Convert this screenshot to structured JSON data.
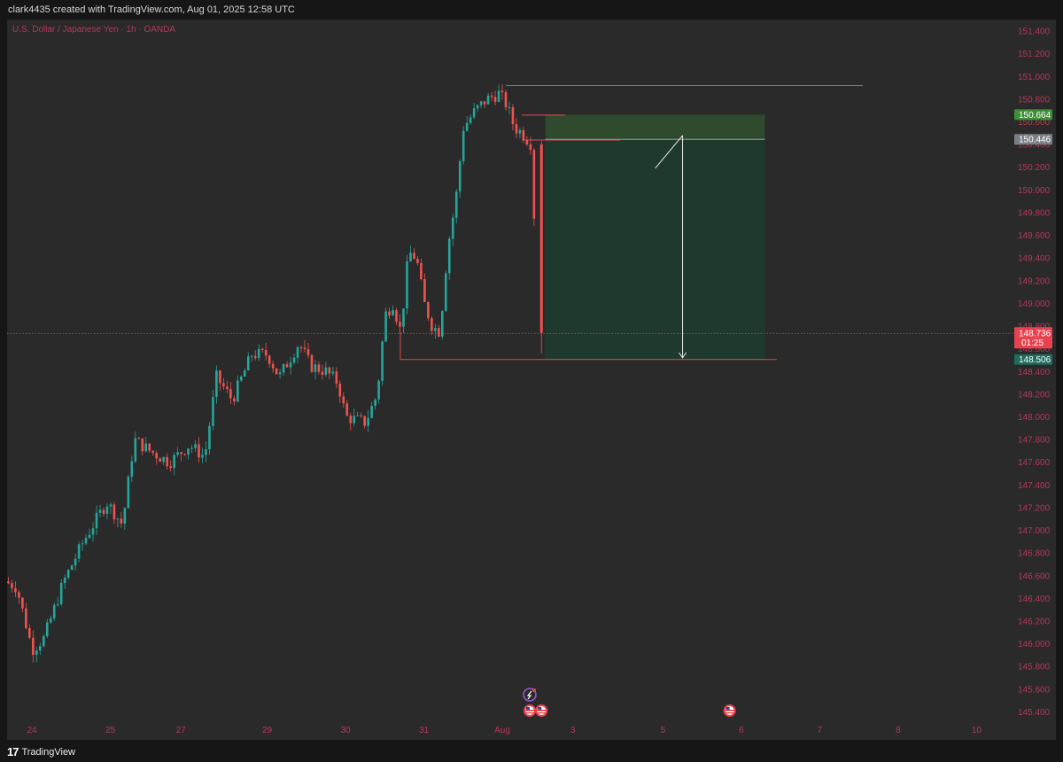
{
  "header": {
    "attribution": "clark4435 created with TradingView.com, Aug 01, 2025 12:58 UTC"
  },
  "footer": {
    "logo_mark": "17",
    "logo_text": "TradingView"
  },
  "colors": {
    "background": "#2a2a2a",
    "frame": "#161616",
    "up": "#26a69a",
    "down": "#ef5350",
    "axis_text": "#b5385a",
    "tp_zone": "#1e3a2e",
    "sl_zone": "#2f4a2c",
    "level_line": "#e04850"
  },
  "chart_data": {
    "type": "candlestick",
    "title": "U.S. Dollar / Japanese Yen · 1h · OANDA",
    "symbol": "U.S. Dollar / Japanese Yen",
    "interval": "1h",
    "exchange": "OANDA",
    "ylim": [
      145.36,
      151.42
    ],
    "y_ticks": [
      "151.400",
      "151.200",
      "151.000",
      "150.800",
      "150.600",
      "150.400",
      "150.200",
      "150.000",
      "149.800",
      "149.600",
      "149.400",
      "149.200",
      "149.000",
      "148.800",
      "148.600",
      "148.400",
      "148.200",
      "148.000",
      "147.800",
      "147.600",
      "147.400",
      "147.200",
      "147.000",
      "146.800",
      "146.600",
      "146.400",
      "146.200",
      "146.000",
      "145.800",
      "145.600",
      "145.400"
    ],
    "x_ticks": [
      {
        "label": "24",
        "day": 0
      },
      {
        "label": "25",
        "day": 1
      },
      {
        "label": "27",
        "day": 1.9
      },
      {
        "label": "29",
        "day": 3
      },
      {
        "label": "30",
        "day": 4
      },
      {
        "label": "31",
        "day": 5
      },
      {
        "label": "Aug",
        "day": 6
      },
      {
        "label": "3",
        "day": 6.9
      },
      {
        "label": "5",
        "day": 8.05
      },
      {
        "label": "6",
        "day": 9.05
      },
      {
        "label": "7",
        "day": 10.05
      },
      {
        "label": "8",
        "day": 11.05
      },
      {
        "label": "10",
        "day": 12.05
      }
    ],
    "price_path": [
      {
        "day": -0.3,
        "price": 146.55
      },
      {
        "day": -0.15,
        "price": 146.5
      },
      {
        "day": 0.05,
        "price": 145.95
      },
      {
        "day": 0.2,
        "price": 146.05
      },
      {
        "day": 0.45,
        "price": 146.55
      },
      {
        "day": 0.7,
        "price": 146.9
      },
      {
        "day": 1.0,
        "price": 147.25
      },
      {
        "day": 1.2,
        "price": 147.05
      },
      {
        "day": 1.35,
        "price": 147.8
      },
      {
        "day": 1.55,
        "price": 147.7
      },
      {
        "day": 1.8,
        "price": 147.6
      },
      {
        "day": 2.05,
        "price": 147.75
      },
      {
        "day": 2.25,
        "price": 147.65
      },
      {
        "day": 2.4,
        "price": 148.35
      },
      {
        "day": 2.6,
        "price": 148.15
      },
      {
        "day": 2.85,
        "price": 148.55
      },
      {
        "day": 3.05,
        "price": 148.55
      },
      {
        "day": 3.2,
        "price": 148.35
      },
      {
        "day": 3.45,
        "price": 148.65
      },
      {
        "day": 3.6,
        "price": 148.45
      },
      {
        "day": 3.8,
        "price": 148.4
      },
      {
        "day": 3.95,
        "price": 148.3
      },
      {
        "day": 4.05,
        "price": 148.0
      },
      {
        "day": 4.3,
        "price": 147.95
      },
      {
        "day": 4.45,
        "price": 148.2
      },
      {
        "day": 4.55,
        "price": 148.9
      },
      {
        "day": 4.65,
        "price": 149.0
      },
      {
        "day": 4.75,
        "price": 148.75
      },
      {
        "day": 4.85,
        "price": 149.45
      },
      {
        "day": 4.95,
        "price": 149.4
      },
      {
        "day": 5.05,
        "price": 149.0
      },
      {
        "day": 5.15,
        "price": 148.8
      },
      {
        "day": 5.25,
        "price": 148.75
      },
      {
        "day": 5.35,
        "price": 149.5
      },
      {
        "day": 5.45,
        "price": 149.9
      },
      {
        "day": 5.55,
        "price": 150.55
      },
      {
        "day": 5.7,
        "price": 150.7
      },
      {
        "day": 5.85,
        "price": 150.8
      },
      {
        "day": 6.0,
        "price": 150.85
      },
      {
        "day": 6.1,
        "price": 150.75
      },
      {
        "day": 6.2,
        "price": 150.55
      },
      {
        "day": 6.3,
        "price": 150.5
      },
      {
        "day": 6.42,
        "price": 150.4
      },
      {
        "day": 6.5,
        "price": 148.74
      }
    ],
    "levels": {
      "high_line": 150.92,
      "entry_line": 150.446,
      "take_profit": 148.506,
      "stop_loss": 150.664,
      "current": 148.736,
      "minor_line_1": 150.66,
      "minor_line_2": 150.44
    },
    "position": {
      "start_day": 6.55,
      "end_day": 9.35
    },
    "arrow": {
      "from_day": 8.3,
      "from_price": 150.48,
      "to_price": 148.52,
      "tail_start_day": 7.95,
      "tail_start_price": 150.19
    },
    "price_labels": {
      "stop_loss": "150.664",
      "entry": "150.446",
      "current": "148.736",
      "countdown": "01:25",
      "take_profit": "148.506"
    },
    "event_markers": [
      {
        "day": 6.35,
        "row": "top",
        "icon": "lightning-icon"
      },
      {
        "day": 6.35,
        "row": "bottom",
        "icon": "us-flag-icon"
      },
      {
        "day": 6.5,
        "row": "bottom",
        "icon": "us-flag-icon"
      },
      {
        "day": 8.9,
        "row": "bottom",
        "icon": "us-flag-icon"
      }
    ]
  }
}
